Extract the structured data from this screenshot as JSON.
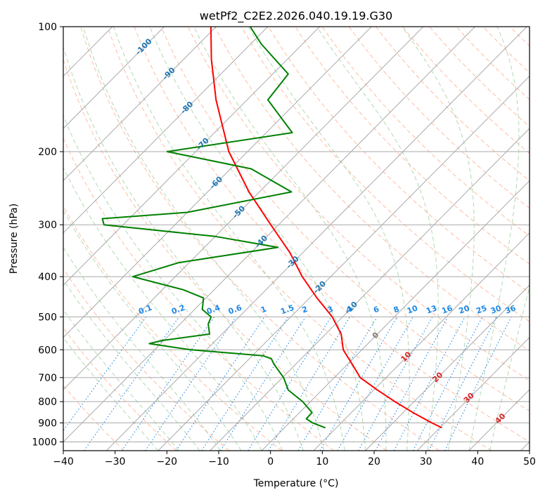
{
  "chart_data": {
    "type": "line",
    "subtype": "skew-T log-p diagram",
    "title": "wetPf2_C2E2.2026.040.19.19.G30",
    "xlabel": "Temperature (°C)",
    "ylabel": "Pressure (hPa)",
    "xlim": [
      -40,
      50
    ],
    "ylim": [
      1050,
      100
    ],
    "x_ticks": [
      "−40",
      "−30",
      "−20",
      "−10",
      "0",
      "10",
      "20",
      "30",
      "40",
      "50"
    ],
    "y_ticks": [
      "100",
      "200",
      "300",
      "400",
      "500",
      "600",
      "700",
      "800",
      "900",
      "1000"
    ],
    "y_tick_values": [
      100,
      200,
      300,
      400,
      500,
      600,
      700,
      800,
      900,
      1000
    ],
    "grid": true,
    "series": [
      {
        "name": "Temperature",
        "color": "#ff0000",
        "pressure": [
          925,
          900,
          850,
          800,
          750,
          700,
          650,
          600,
          550,
          500,
          450,
          400,
          350,
          300,
          250,
          200,
          150,
          120,
          100
        ],
        "values": [
          30.4,
          27.5,
          21.9,
          16.3,
          10.7,
          5.0,
          0.9,
          -3.6,
          -7.0,
          -12.0,
          -18.6,
          -25.5,
          -32.5,
          -41.5,
          -52.0,
          -63.6,
          -76.0,
          -84.6,
          -91.0
        ]
      },
      {
        "name": "Dewpoint",
        "color": "#008000",
        "pressure": [
          925,
          900,
          880,
          850,
          800,
          750,
          700,
          650,
          630,
          620,
          600,
          580,
          570,
          550,
          520,
          500,
          480,
          450,
          430,
          400,
          370,
          340,
          320,
          300,
          290,
          280,
          250,
          220,
          200,
          180,
          150,
          130,
          110,
          100
        ],
        "values": [
          7.9,
          4.5,
          2.5,
          2.4,
          -1.5,
          -6.5,
          -9.8,
          -14.2,
          -15.8,
          -18.0,
          -33.0,
          -42.2,
          -40.4,
          -32.4,
          -34.6,
          -35.4,
          -38.5,
          -40.5,
          -46.0,
          -58.2,
          -52.0,
          -35.8,
          -50.0,
          -73.7,
          -75.2,
          -60.0,
          -43.8,
          -56.0,
          -75.5,
          -55.0,
          -66.0,
          -67.0,
          -78.0,
          -83.4
        ]
      }
    ],
    "isotherm_labels": [
      "-100",
      "-90",
      "-80",
      "-70",
      "-60",
      "-50",
      "-40",
      "-30",
      "-20",
      "-10",
      "0",
      "10",
      "20",
      "30",
      "40"
    ],
    "isotherm_label_values": [
      -100,
      -90,
      -80,
      -70,
      -60,
      -50,
      -40,
      -30,
      -20,
      -10,
      0,
      10,
      20,
      30,
      40
    ],
    "mixing_ratio_labels": [
      "0.1",
      "0.2",
      "0.4",
      "0.6",
      "1",
      "1.5",
      "2",
      "3",
      "4",
      "6",
      "8",
      "10",
      "13",
      "16",
      "20",
      "25",
      "30",
      "36"
    ],
    "mixing_ratio_values": [
      0.1,
      0.2,
      0.4,
      0.6,
      1,
      1.5,
      2,
      3,
      4,
      6,
      8,
      10,
      13,
      16,
      20,
      25,
      30,
      36
    ],
    "colors": {
      "isotherm_cold": "#1f77b4",
      "isotherm_zero": "#808080",
      "isotherm_warm": "#d62728",
      "mixing_ratio": "#1e88e5",
      "dry_adiabat": "#ffa07a",
      "moist_adiabat": "#90c990",
      "grid": "#a9a9a9"
    }
  }
}
